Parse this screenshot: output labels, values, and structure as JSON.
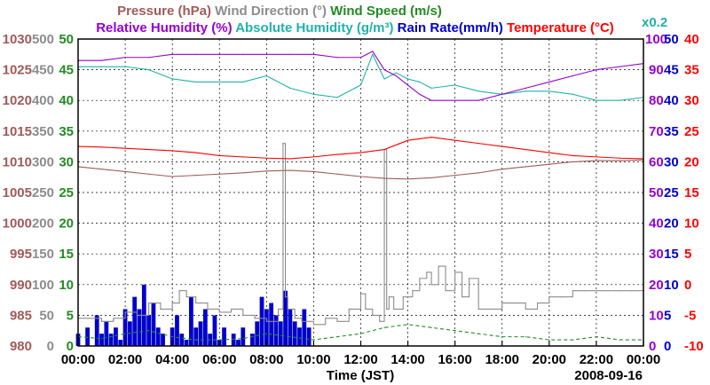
{
  "chart_data": {
    "type": "line",
    "date": "2008-09-16",
    "xlabel": "Time (JST)",
    "x_ticks": [
      "00:00",
      "02:00",
      "04:00",
      "06:00",
      "08:00",
      "10:00",
      "12:00",
      "14:00",
      "16:00",
      "18:00",
      "20:00",
      "22:00",
      "00:00"
    ],
    "x_range_hours": [
      0,
      24
    ],
    "legend": {
      "row1": [
        {
          "name": "Pressure (hPa)",
          "color": "#a05a5a"
        },
        {
          "name": "Wind Direction (°)",
          "color": "#8c8c8c"
        },
        {
          "name": "Wind Speed (m/s)",
          "color": "#228b22"
        }
      ],
      "row2": [
        {
          "name": "Relative Humidity (%)",
          "color": "#9400d3"
        },
        {
          "name": "Absolute Humidity (g/m³)",
          "color": "#20b2aa"
        },
        {
          "name": "Rain Rate(mm/h)",
          "color": "#0000cd"
        },
        {
          "name": "Temperature (°C)",
          "color": "#ff0000"
        }
      ],
      "scale_note": {
        "text": "x0.2",
        "color": "#20b2aa"
      }
    },
    "axes": {
      "pressure": {
        "color": "#a05a5a",
        "range": [
          980,
          1030
        ],
        "ticks": [
          "980",
          "985",
          "990",
          "995",
          "1000",
          "1005",
          "1010",
          "1015",
          "1020",
          "1025",
          "1030"
        ]
      },
      "wind_direction": {
        "color": "#8c8c8c",
        "range": [
          0,
          500
        ],
        "ticks": [
          "0",
          "50",
          "100",
          "150",
          "200",
          "250",
          "300",
          "350",
          "400",
          "450",
          "500"
        ]
      },
      "wind_speed": {
        "color": "#228b22",
        "range": [
          0,
          50
        ],
        "ticks": [
          "0",
          "5",
          "10",
          "15",
          "20",
          "25",
          "30",
          "35",
          "40",
          "45",
          "50"
        ]
      },
      "humidity": {
        "color": "#9400d3",
        "range": [
          0,
          100
        ],
        "ticks": [
          "0",
          "10",
          "20",
          "30",
          "40",
          "50",
          "60",
          "70",
          "80",
          "90",
          "100"
        ]
      },
      "rain_rate": {
        "color": "#0000cd",
        "range": [
          0,
          50
        ],
        "ticks": [
          "0",
          "5",
          "10",
          "15",
          "20",
          "25",
          "30",
          "35",
          "40",
          "45",
          "50"
        ]
      },
      "temperature": {
        "color": "#ff0000",
        "range": [
          -10,
          40
        ],
        "ticks": [
          "-10",
          "-5",
          "0",
          "5",
          "10",
          "15",
          "20",
          "25",
          "30",
          "35",
          "40"
        ]
      }
    },
    "series": [
      {
        "name": "Pressure",
        "axis": "pressure",
        "color": "#a05a5a",
        "x": [
          0,
          1,
          2,
          3,
          4,
          5,
          6,
          7,
          8,
          9,
          10,
          11,
          12,
          13,
          14,
          15,
          16,
          17,
          18,
          19,
          20,
          21,
          22,
          23,
          24
        ],
        "y": [
          1009.2,
          1008.8,
          1008.4,
          1008.0,
          1007.6,
          1007.8,
          1008.0,
          1008.2,
          1008.5,
          1008.6,
          1008.4,
          1008.0,
          1007.6,
          1007.3,
          1007.2,
          1007.4,
          1007.8,
          1008.2,
          1008.8,
          1009.2,
          1009.6,
          1010.0,
          1010.2,
          1010.2,
          1010.3
        ]
      },
      {
        "name": "Wind Direction",
        "axis": "wind_direction",
        "color": "#8c8c8c",
        "style": "steps",
        "x": [
          0,
          0.5,
          1,
          1.5,
          2,
          2.5,
          3,
          3.5,
          4,
          4.3,
          4.6,
          5,
          5.5,
          6,
          6.5,
          7,
          7.5,
          8,
          8.5,
          8.7,
          8.8,
          8.9,
          9.2,
          9.5,
          10,
          10.5,
          11,
          11.5,
          12,
          12.2,
          12.5,
          12.8,
          13.0,
          13.1,
          13.2,
          13.4,
          13.8,
          14.2,
          14.5,
          14.8,
          15,
          15.3,
          15.6,
          16,
          16.3,
          16.6,
          17,
          17.5,
          18,
          18.5,
          19,
          19.5,
          20,
          20.5,
          21,
          21.5,
          22,
          22.5,
          23,
          23.5,
          24
        ],
        "y": [
          45,
          45,
          40,
          45,
          55,
          50,
          70,
          60,
          70,
          90,
          80,
          70,
          60,
          55,
          60,
          50,
          45,
          40,
          60,
          330,
          80,
          60,
          45,
          40,
          35,
          45,
          40,
          60,
          85,
          60,
          50,
          40,
          320,
          60,
          80,
          60,
          80,
          90,
          110,
          120,
          100,
          130,
          90,
          120,
          80,
          110,
          60,
          60,
          70,
          70,
          60,
          70,
          80,
          80,
          90,
          90,
          90,
          90,
          90,
          90,
          90
        ]
      },
      {
        "name": "Wind Speed",
        "axis": "wind_speed",
        "color": "#228b22",
        "style": "dashed",
        "x": [
          0,
          1,
          2,
          3,
          4,
          5,
          6,
          7,
          8,
          9,
          10,
          11,
          12,
          13,
          14,
          15,
          16,
          17,
          18,
          19,
          20,
          21,
          22,
          23,
          24
        ],
        "y": [
          1.5,
          1.2,
          2.0,
          2.5,
          1.5,
          1.0,
          1.0,
          1.2,
          2.0,
          1.5,
          1.0,
          1.5,
          2.0,
          3.0,
          3.5,
          3.0,
          2.5,
          2.0,
          1.5,
          1.5,
          1.0,
          1.0,
          1.5,
          1.0,
          1.0
        ]
      },
      {
        "name": "Relative Humidity",
        "axis": "humidity",
        "color": "#9400d3",
        "x": [
          0,
          1,
          2,
          3,
          4,
          5,
          6,
          7,
          8,
          9,
          10,
          11,
          12,
          12.5,
          13,
          13.5,
          14,
          14.5,
          15,
          16,
          17,
          18,
          19,
          20,
          21,
          22,
          23,
          24
        ],
        "y": [
          93,
          93,
          94,
          94,
          95,
          95,
          95,
          95,
          95,
          95,
          95,
          94,
          94,
          96,
          90,
          88,
          85,
          82,
          80,
          80,
          80,
          82,
          84,
          86,
          88,
          90,
          91,
          92
        ]
      },
      {
        "name": "Absolute Humidity (x0.2)",
        "axis": "wind_speed",
        "color": "#20b2aa",
        "x": [
          0,
          1,
          2,
          3,
          4,
          5,
          6,
          7,
          8,
          9,
          10,
          11,
          12,
          12.5,
          13,
          13.5,
          14,
          14.5,
          15,
          16,
          17,
          18,
          19,
          20,
          21,
          22,
          23,
          24
        ],
        "y": [
          45.5,
          45.5,
          45.5,
          45.0,
          43.5,
          43.0,
          43.0,
          43.0,
          44.0,
          42.0,
          41.0,
          40.5,
          42.5,
          47.5,
          43.5,
          44.5,
          43.5,
          43.0,
          42.0,
          42.5,
          41.5,
          41.0,
          41.5,
          41.5,
          41.0,
          40.0,
          40.0,
          40.5
        ]
      },
      {
        "name": "Temperature",
        "axis": "temperature",
        "color": "#ff0000",
        "x": [
          0,
          1,
          2,
          3,
          4,
          5,
          6,
          7,
          8,
          9,
          10,
          11,
          12,
          13,
          14,
          15,
          16,
          17,
          18,
          19,
          20,
          21,
          22,
          23,
          24
        ],
        "y": [
          22.5,
          22.4,
          22.2,
          22.0,
          21.8,
          21.5,
          21.0,
          20.8,
          20.6,
          20.5,
          20.8,
          21.2,
          21.5,
          22.0,
          23.5,
          24.0,
          23.5,
          23.0,
          22.5,
          22.0,
          21.5,
          21.0,
          20.8,
          20.6,
          20.5
        ]
      },
      {
        "name": "Rain Rate",
        "axis": "rain_rate",
        "color": "#0000cd",
        "style": "bars",
        "x": [
          0,
          0.2,
          0.4,
          0.6,
          0.8,
          1.0,
          1.2,
          1.4,
          1.6,
          1.8,
          2.0,
          2.2,
          2.4,
          2.6,
          2.8,
          3.0,
          3.2,
          3.4,
          3.6,
          3.8,
          4.0,
          4.2,
          4.4,
          4.6,
          4.8,
          5.0,
          5.2,
          5.4,
          5.6,
          5.8,
          6.0,
          6.2,
          6.4,
          6.6,
          6.8,
          7.0,
          7.2,
          7.4,
          7.6,
          7.8,
          8.0,
          8.2,
          8.4,
          8.6,
          8.8,
          9.0,
          9.2,
          9.4,
          9.6,
          9.8
        ],
        "y": [
          2,
          0,
          3,
          0,
          5,
          2,
          4,
          2,
          3,
          1,
          6,
          4,
          8,
          6,
          10,
          5,
          7,
          3,
          2,
          0,
          3,
          5,
          2,
          1,
          8,
          3,
          4,
          6,
          2,
          5,
          1,
          3,
          0,
          2,
          1,
          3,
          0,
          2,
          4,
          8,
          6,
          7,
          5,
          4,
          9,
          6,
          4,
          3,
          6,
          3
        ]
      }
    ]
  }
}
